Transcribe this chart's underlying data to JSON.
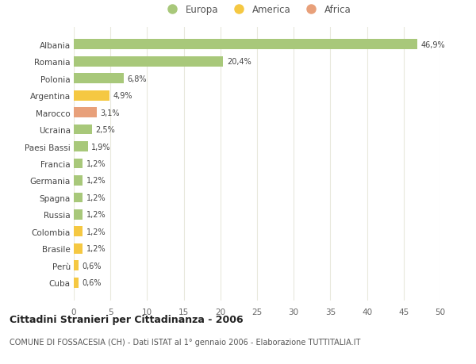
{
  "categories": [
    "Cuba",
    "Perù",
    "Brasile",
    "Colombia",
    "Russia",
    "Spagna",
    "Germania",
    "Francia",
    "Paesi Bassi",
    "Ucraina",
    "Marocco",
    "Argentina",
    "Polonia",
    "Romania",
    "Albania"
  ],
  "values": [
    0.6,
    0.6,
    1.2,
    1.2,
    1.2,
    1.2,
    1.2,
    1.2,
    1.9,
    2.5,
    3.1,
    4.9,
    6.8,
    20.4,
    46.9
  ],
  "labels": [
    "0,6%",
    "0,6%",
    "1,2%",
    "1,2%",
    "1,2%",
    "1,2%",
    "1,2%",
    "1,2%",
    "1,9%",
    "2,5%",
    "3,1%",
    "4,9%",
    "6,8%",
    "20,4%",
    "46,9%"
  ],
  "colors": [
    "#f5c842",
    "#f5c842",
    "#f5c842",
    "#f5c842",
    "#a8c87a",
    "#a8c87a",
    "#a8c87a",
    "#a8c87a",
    "#a8c87a",
    "#a8c87a",
    "#e8a07a",
    "#f5c842",
    "#a8c87a",
    "#a8c87a",
    "#a8c87a"
  ],
  "legend_labels": [
    "Europa",
    "America",
    "Africa"
  ],
  "legend_colors": [
    "#a8c87a",
    "#f5c842",
    "#e8a07a"
  ],
  "title": "Cittadini Stranieri per Cittadinanza - 2006",
  "subtitle": "COMUNE DI FOSSACESIA (CH) - Dati ISTAT al 1° gennaio 2006 - Elaborazione TUTTITALIA.IT",
  "xlim": [
    0,
    50
  ],
  "xticks": [
    0,
    5,
    10,
    15,
    20,
    25,
    30,
    35,
    40,
    45,
    50
  ],
  "background_color": "#ffffff",
  "grid_color": "#e8e8dc",
  "bar_height": 0.6
}
